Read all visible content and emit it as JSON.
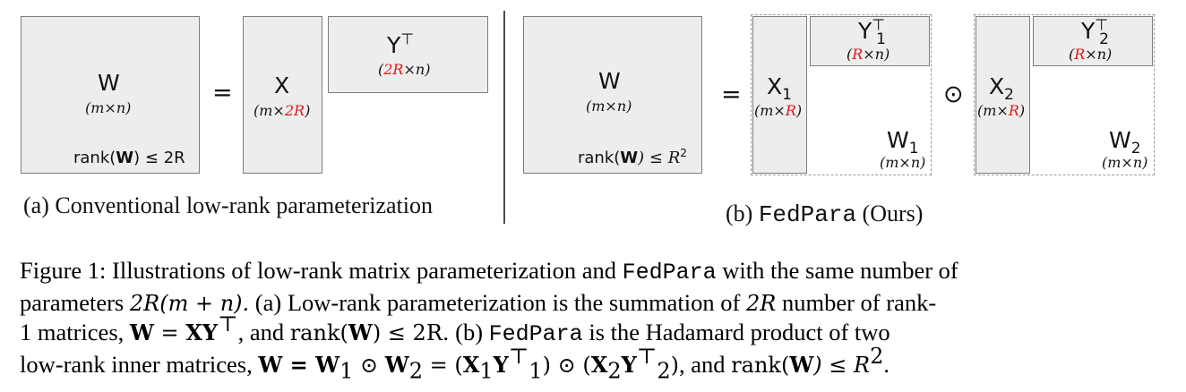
{
  "panel_a": {
    "w_symbol": "W",
    "w_dim": "(m×n)",
    "rank_prefix": "rank(",
    "rank_bold": "W",
    "rank_suffix": ") ≤ 2R",
    "equals": "=",
    "x_symbol": "X",
    "x_dim_prefix": "(m×",
    "x_dim_red": "2R",
    "x_dim_suffix": ")",
    "y_symbol": "Y",
    "y_sup": "⊤",
    "y_dim_prefix": "(",
    "y_dim_red": "2R",
    "y_dim_suffix": "×n)",
    "caption": "(a) Conventional low-rank parameterization"
  },
  "panel_b": {
    "w_symbol": "W",
    "w_dim": "(m×n)",
    "rank_prefix": "rank(",
    "rank_bold": "W",
    "rank_mid": ") ≤ R",
    "rank_sup": "2",
    "equals": "=",
    "hadamard": "⊙",
    "x1_symbol": "X",
    "x1_sub": "1",
    "x1_dim_prefix": "(m×",
    "x1_dim_red": "R",
    "x1_dim_suffix": ")",
    "y1_symbol": "Y",
    "y1_sup": "⊤",
    "y1_sub": "1",
    "y1_dim_prefix": "(",
    "y1_dim_red": "R",
    "y1_dim_suffix": "×n)",
    "w1_symbol": "W",
    "w1_sub": "1",
    "w1_dim": "(m×n)",
    "x2_symbol": "X",
    "x2_sub": "2",
    "x2_dim_prefix": "(m×",
    "x2_dim_red": "R",
    "x2_dim_suffix": ")",
    "y2_symbol": "Y",
    "y2_sup": "⊤",
    "y2_sub": "2",
    "y2_dim_prefix": "(",
    "y2_dim_red": "R",
    "y2_dim_suffix": "×n)",
    "w2_symbol": "W",
    "w2_sub": "2",
    "w2_dim": "(m×n)",
    "caption_prefix": "(b) ",
    "caption_mono": "FedPara",
    "caption_suffix": " (Ours)"
  },
  "figure_caption": {
    "l1_a": "Figure 1: Illustrations of low-rank matrix parameterization and ",
    "l1_mono": "FedPara",
    "l1_b": " with the same number of",
    "l2_a": "parameters ",
    "l2_math": "2R(m + n).",
    "l2_b": "  (a) Low-rank parameterization is the summation of ",
    "l2_math2": "2R",
    "l2_c": " number of rank-",
    "l3_a": "1 matrices, ",
    "l3_m1": "W",
    "l3_eq": " = ",
    "l3_m2": "XY",
    "l3_sup": "⊤",
    "l3_b": ", and ",
    "l3_rank": "rank(",
    "l3_rankw": "W",
    "l3_rankend": ") ≤ 2R.",
    "l3_c": "  (b) ",
    "l3_mono": "FedPara",
    "l3_d": " is the Hadamard product of two",
    "l4_a": "low-rank inner matrices, ",
    "l4_m1": "W = W",
    "l4_s1": "1",
    "l4_o1": " ⊙ ",
    "l4_m2": "W",
    "l4_s2": "2",
    "l4_eq": " = (",
    "l4_x1": "X",
    "l4_x1s": "1",
    "l4_y1": "Y",
    "l4_y1s": "1",
    "l4_y1t": "⊤",
    "l4_mid": ") ⊙ (",
    "l4_x2": "X",
    "l4_x2s": "2",
    "l4_y2": "Y",
    "l4_y2s": "2",
    "l4_y2t": "⊤",
    "l4_end": ")",
    "l4_b": ", and ",
    "l4_rank": "rank(",
    "l4_rankw": "W",
    "l4_rankend": ") ≤ R",
    "l4_sup": "2",
    "l4_c": "."
  }
}
